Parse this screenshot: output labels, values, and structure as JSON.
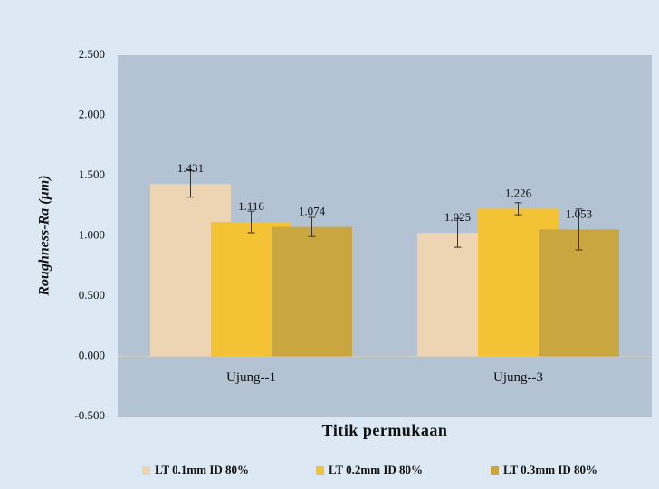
{
  "chart_data": {
    "type": "bar",
    "x_label": "Titik permukaan",
    "y_label": "Roughness-Ra (µm)",
    "categories": [
      "Ujung--1",
      "Ujung--3"
    ],
    "series": [
      {
        "name": "LT 0.1mm ID 80%",
        "color": "#edd4b3",
        "values": [
          1.431,
          1.025
        ],
        "errors": [
          0.11,
          0.12
        ]
      },
      {
        "name": "LT 0.2mm ID 80%",
        "color": "#f4c235",
        "values": [
          1.116,
          1.226
        ],
        "errors": [
          0.09,
          0.05
        ]
      },
      {
        "name": "LT 0.3mm ID 80%",
        "color": "#c9a640",
        "values": [
          1.074,
          1.053
        ],
        "errors": [
          0.08,
          0.17
        ]
      }
    ],
    "ylim": [
      -0.5,
      2.5
    ],
    "yticks": [
      {
        "value": -0.5,
        "label": "-0.500"
      },
      {
        "value": 0,
        "label": "0.000"
      },
      {
        "value": 0.5,
        "label": "0.500"
      },
      {
        "value": 1,
        "label": "1.000"
      },
      {
        "value": 1.5,
        "label": "1.500"
      },
      {
        "value": 2,
        "label": "2.000"
      },
      {
        "value": 2.5,
        "label": "2.500"
      }
    ],
    "grid": false,
    "legend": "bottom"
  }
}
